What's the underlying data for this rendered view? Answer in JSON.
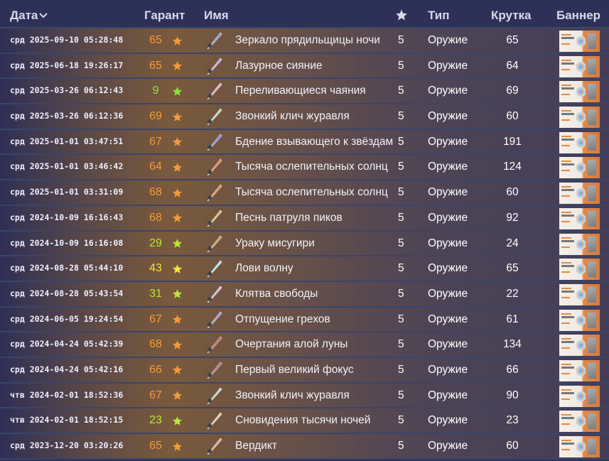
{
  "header": {
    "date": "Дата",
    "pity": "Гарант",
    "name": "Имя",
    "rarity_icon": "star-icon",
    "type": "Тип",
    "pull": "Крутка",
    "banner": "Баннер"
  },
  "colors": {
    "orange": "#f39a3c",
    "yellow": "#f2e63a",
    "lime": "#b8e83a",
    "green": "#86e63a"
  },
  "rows": [
    {
      "date": "срд 2025-09-10 05:28:48",
      "pity": "65",
      "tone": "orange",
      "name": "Зеркало прядильщицы ночи",
      "rarity": "5",
      "type": "Оружие",
      "pull": "65"
    },
    {
      "date": "срд 2025-06-18 19:26:17",
      "pity": "65",
      "tone": "orange",
      "name": "Лазурное сияние",
      "rarity": "5",
      "type": "Оружие",
      "pull": "64"
    },
    {
      "date": "срд 2025-03-26 06:12:43",
      "pity": "9",
      "tone": "green",
      "name": "Переливающиеся чаяния",
      "rarity": "5",
      "type": "Оружие",
      "pull": "69"
    },
    {
      "date": "срд 2025-03-26 06:12:36",
      "pity": "69",
      "tone": "orange",
      "name": "Звонкий клич журавля",
      "rarity": "5",
      "type": "Оружие",
      "pull": "60"
    },
    {
      "date": "срд 2025-01-01 03:47:51",
      "pity": "67",
      "tone": "orange",
      "name": "Бдение взывающего к звёздам",
      "rarity": "5",
      "type": "Оружие",
      "pull": "191"
    },
    {
      "date": "срд 2025-01-01 03:46:42",
      "pity": "64",
      "tone": "orange",
      "name": "Тысяча ослепительных солнц",
      "rarity": "5",
      "type": "Оружие",
      "pull": "124"
    },
    {
      "date": "срд 2025-01-01 03:31:09",
      "pity": "68",
      "tone": "orange",
      "name": "Тысяча ослепительных солнц",
      "rarity": "5",
      "type": "Оружие",
      "pull": "60"
    },
    {
      "date": "срд 2024-10-09 16:16:43",
      "pity": "68",
      "tone": "orange",
      "name": "Песнь патруля пиков",
      "rarity": "5",
      "type": "Оружие",
      "pull": "92"
    },
    {
      "date": "срд 2024-10-09 16:16:08",
      "pity": "29",
      "tone": "lime",
      "name": "Ураку мисугири",
      "rarity": "5",
      "type": "Оружие",
      "pull": "24"
    },
    {
      "date": "срд 2024-08-28 05:44:10",
      "pity": "43",
      "tone": "yellow",
      "name": "Лови волну",
      "rarity": "5",
      "type": "Оружие",
      "pull": "65"
    },
    {
      "date": "срд 2024-08-28 05:43:54",
      "pity": "31",
      "tone": "lime",
      "name": "Клятва свободы",
      "rarity": "5",
      "type": "Оружие",
      "pull": "22"
    },
    {
      "date": "срд 2024-06-05 19:24:54",
      "pity": "67",
      "tone": "orange",
      "name": "Отпущение грехов",
      "rarity": "5",
      "type": "Оружие",
      "pull": "61"
    },
    {
      "date": "срд 2024-04-24 05:42:39",
      "pity": "68",
      "tone": "orange",
      "name": "Очертания алой луны",
      "rarity": "5",
      "type": "Оружие",
      "pull": "134"
    },
    {
      "date": "срд 2024-04-24 05:42:16",
      "pity": "66",
      "tone": "orange",
      "name": "Первый великий фокус",
      "rarity": "5",
      "type": "Оружие",
      "pull": "66"
    },
    {
      "date": "чтв 2024-02-01 18:52:36",
      "pity": "67",
      "tone": "orange",
      "name": "Звонкий клич журавля",
      "rarity": "5",
      "type": "Оружие",
      "pull": "90"
    },
    {
      "date": "чтв 2024-02-01 18:52:15",
      "pity": "23",
      "tone": "lime",
      "name": "Сновидения тысячи ночей",
      "rarity": "5",
      "type": "Оружие",
      "pull": "23"
    },
    {
      "date": "срд 2023-12-20 03:20:26",
      "pity": "65",
      "tone": "orange",
      "name": "Вердикт",
      "rarity": "5",
      "type": "Оружие",
      "pull": "60"
    }
  ]
}
